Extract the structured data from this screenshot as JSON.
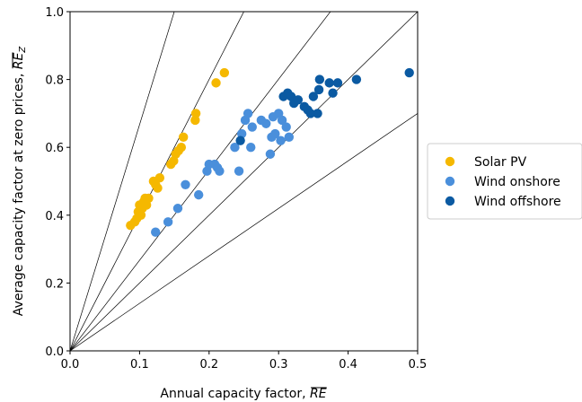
{
  "chart_data": {
    "type": "scatter",
    "xlabel": "Annual capacity factor, ",
    "xlabel_symbol": "RE",
    "ylabel": "Average capacity factor at zero prices, ",
    "ylabel_symbol": "RE",
    "ylabel_subscript": "Z",
    "xlim": [
      0.0,
      0.5
    ],
    "ylim": [
      0.0,
      1.0
    ],
    "xticks": [
      "0.0",
      "0.1",
      "0.2",
      "0.3",
      "0.4",
      "0.5"
    ],
    "yticks": [
      "0.0",
      "0.2",
      "0.4",
      "0.6",
      "0.8",
      "1.0"
    ],
    "grid": false,
    "legend_position": "outside-right",
    "reference_line_slopes": [
      1.4,
      2.0,
      2.67,
      4.0,
      6.67
    ],
    "series": [
      {
        "name": "Solar PV",
        "color": "#F5B800",
        "points": [
          [
            0.087,
            0.37
          ],
          [
            0.093,
            0.38
          ],
          [
            0.096,
            0.39
          ],
          [
            0.098,
            0.41
          ],
          [
            0.1,
            0.43
          ],
          [
            0.102,
            0.4
          ],
          [
            0.104,
            0.42
          ],
          [
            0.106,
            0.44
          ],
          [
            0.108,
            0.45
          ],
          [
            0.11,
            0.43
          ],
          [
            0.113,
            0.45
          ],
          [
            0.12,
            0.5
          ],
          [
            0.123,
            0.49
          ],
          [
            0.126,
            0.48
          ],
          [
            0.129,
            0.51
          ],
          [
            0.145,
            0.55
          ],
          [
            0.149,
            0.56
          ],
          [
            0.152,
            0.58
          ],
          [
            0.156,
            0.59
          ],
          [
            0.16,
            0.6
          ],
          [
            0.163,
            0.63
          ],
          [
            0.18,
            0.68
          ],
          [
            0.181,
            0.7
          ],
          [
            0.21,
            0.79
          ],
          [
            0.222,
            0.82
          ]
        ]
      },
      {
        "name": "Wind onshore",
        "color": "#4A8FDB",
        "points": [
          [
            0.123,
            0.35
          ],
          [
            0.141,
            0.38
          ],
          [
            0.155,
            0.42
          ],
          [
            0.166,
            0.49
          ],
          [
            0.185,
            0.46
          ],
          [
            0.197,
            0.53
          ],
          [
            0.2,
            0.55
          ],
          [
            0.208,
            0.55
          ],
          [
            0.212,
            0.54
          ],
          [
            0.215,
            0.53
          ],
          [
            0.237,
            0.6
          ],
          [
            0.243,
            0.53
          ],
          [
            0.247,
            0.64
          ],
          [
            0.252,
            0.68
          ],
          [
            0.256,
            0.7
          ],
          [
            0.26,
            0.6
          ],
          [
            0.262,
            0.66
          ],
          [
            0.275,
            0.68
          ],
          [
            0.282,
            0.67
          ],
          [
            0.288,
            0.58
          ],
          [
            0.29,
            0.63
          ],
          [
            0.292,
            0.69
          ],
          [
            0.295,
            0.64
          ],
          [
            0.3,
            0.7
          ],
          [
            0.303,
            0.62
          ],
          [
            0.305,
            0.68
          ],
          [
            0.311,
            0.66
          ],
          [
            0.315,
            0.63
          ]
        ]
      },
      {
        "name": "Wind offshore",
        "color": "#0B5AA2",
        "points": [
          [
            0.245,
            0.62
          ],
          [
            0.307,
            0.75
          ],
          [
            0.313,
            0.76
          ],
          [
            0.318,
            0.75
          ],
          [
            0.322,
            0.73
          ],
          [
            0.328,
            0.74
          ],
          [
            0.337,
            0.72
          ],
          [
            0.342,
            0.71
          ],
          [
            0.346,
            0.7
          ],
          [
            0.35,
            0.75
          ],
          [
            0.356,
            0.7
          ],
          [
            0.358,
            0.77
          ],
          [
            0.359,
            0.8
          ],
          [
            0.373,
            0.79
          ],
          [
            0.378,
            0.76
          ],
          [
            0.385,
            0.79
          ],
          [
            0.412,
            0.8
          ],
          [
            0.488,
            0.82
          ]
        ]
      }
    ]
  }
}
